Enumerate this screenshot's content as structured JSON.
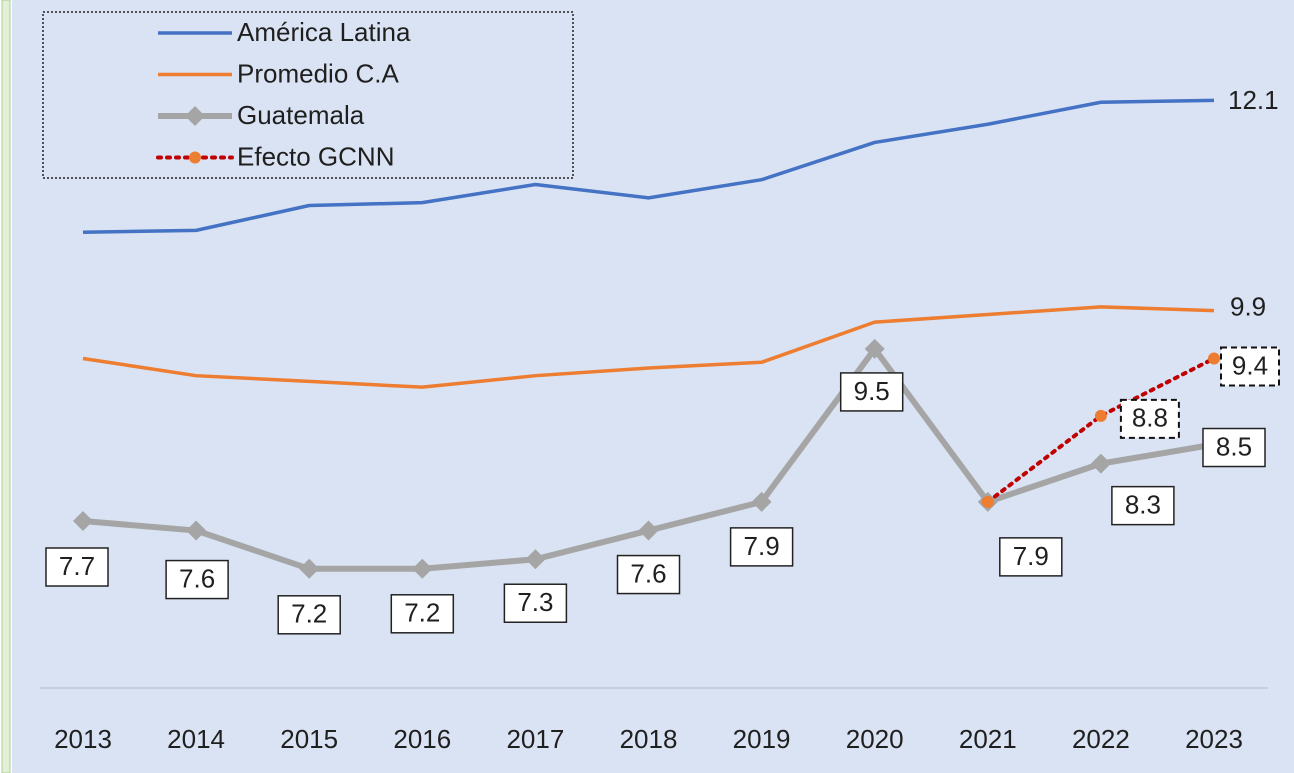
{
  "chart_data": {
    "type": "line",
    "categories": [
      "2013",
      "2014",
      "2015",
      "2016",
      "2017",
      "2018",
      "2019",
      "2020",
      "2021",
      "2022",
      "2023"
    ],
    "series": [
      {
        "name": "América Latina",
        "color": "#4472c4",
        "values": [
          10.72,
          10.74,
          11.0,
          11.03,
          11.22,
          11.08,
          11.27,
          11.66,
          11.85,
          12.08,
          12.1
        ]
      },
      {
        "name": "Promedio C.A",
        "color": "#ed7d31",
        "values": [
          9.4,
          9.22,
          9.16,
          9.1,
          9.22,
          9.3,
          9.36,
          9.78,
          9.86,
          9.94,
          9.9
        ]
      },
      {
        "name": "Guatemala",
        "color": "#a5a5a5",
        "values": [
          7.7,
          7.6,
          7.2,
          7.2,
          7.3,
          7.6,
          7.9,
          9.5,
          7.9,
          8.3,
          8.5
        ]
      },
      {
        "name": "Efecto GCNN",
        "color": "#c00000",
        "values": [
          null,
          null,
          null,
          null,
          null,
          null,
          null,
          null,
          7.9,
          8.8,
          9.4
        ]
      }
    ],
    "legend": "upper left"
  }
}
